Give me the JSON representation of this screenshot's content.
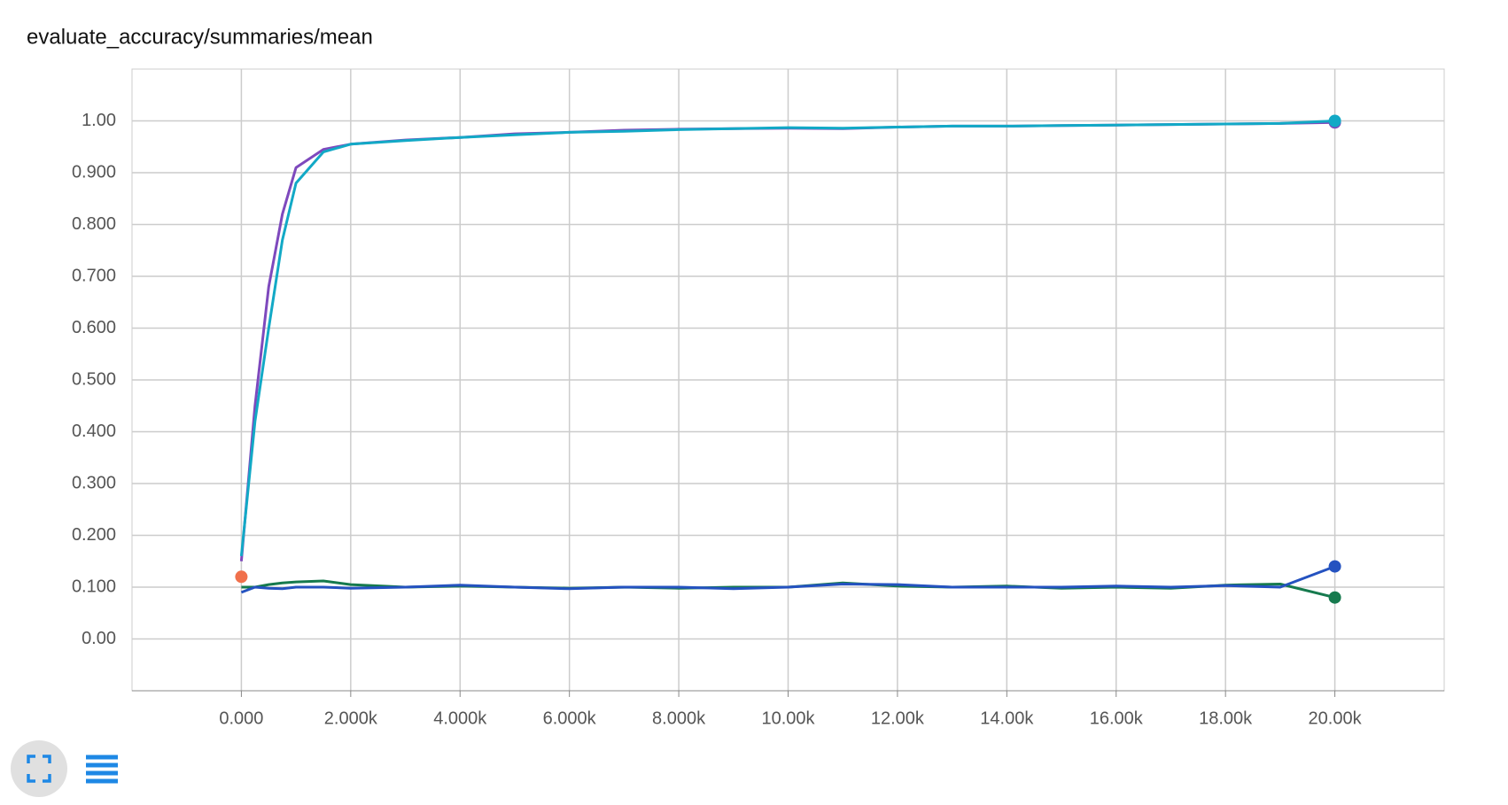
{
  "chart_data": {
    "type": "line",
    "title": "evaluate_accuracy/summaries/mean",
    "x": [
      0,
      250,
      500,
      750,
      1000,
      1500,
      2000,
      3000,
      4000,
      5000,
      6000,
      7000,
      8000,
      9000,
      10000,
      11000,
      12000,
      13000,
      14000,
      15000,
      16000,
      17000,
      18000,
      19000,
      20000
    ],
    "series": [
      {
        "color": "#7e49bd",
        "values": [
          0.15,
          0.45,
          0.68,
          0.82,
          0.91,
          0.945,
          0.955,
          0.963,
          0.968,
          0.975,
          0.978,
          0.982,
          0.984,
          0.985,
          0.986,
          0.985,
          0.988,
          0.99,
          0.99,
          0.991,
          0.992,
          0.993,
          0.994,
          0.995,
          0.997
        ]
      },
      {
        "color": "#12a9c6",
        "values": [
          0.16,
          0.42,
          0.6,
          0.77,
          0.88,
          0.94,
          0.955,
          0.962,
          0.968,
          0.973,
          0.978,
          0.98,
          0.983,
          0.985,
          0.987,
          0.986,
          0.988,
          0.99,
          0.99,
          0.991,
          0.992,
          0.993,
          0.994,
          0.995,
          1.0
        ]
      },
      {
        "color": "#167a4e",
        "values": [
          0.1,
          0.1,
          0.105,
          0.108,
          0.11,
          0.112,
          0.105,
          0.1,
          0.102,
          0.1,
          0.098,
          0.1,
          0.098,
          0.1,
          0.1,
          0.108,
          0.102,
          0.1,
          0.102,
          0.098,
          0.1,
          0.098,
          0.104,
          0.106,
          0.08
        ]
      },
      {
        "color": "#2452c0",
        "values": [
          0.09,
          0.1,
          0.098,
          0.097,
          0.1,
          0.1,
          0.098,
          0.1,
          0.104,
          0.1,
          0.097,
          0.1,
          0.1,
          0.097,
          0.1,
          0.106,
          0.105,
          0.1,
          0.1,
          0.1,
          0.102,
          0.1,
          0.103,
          0.1,
          0.14
        ]
      },
      {
        "color": "#f0704c",
        "values": [
          0.12,
          null,
          null,
          null,
          null,
          null,
          null,
          null,
          null,
          null,
          null,
          null,
          null,
          null,
          null,
          null,
          null,
          null,
          null,
          null,
          null,
          null,
          null,
          null,
          null
        ]
      }
    ],
    "xlim": [
      -2000,
      22000
    ],
    "xticks": [
      {
        "value": 0,
        "label": "0.000"
      },
      {
        "value": 2000,
        "label": "2.000k"
      },
      {
        "value": 4000,
        "label": "4.000k"
      },
      {
        "value": 6000,
        "label": "6.000k"
      },
      {
        "value": 8000,
        "label": "8.000k"
      },
      {
        "value": 10000,
        "label": "10.00k"
      },
      {
        "value": 12000,
        "label": "12.00k"
      },
      {
        "value": 14000,
        "label": "14.00k"
      },
      {
        "value": 16000,
        "label": "16.00k"
      },
      {
        "value": 18000,
        "label": "18.00k"
      },
      {
        "value": 20000,
        "label": "20.00k"
      }
    ],
    "ylim": [
      -0.1,
      1.1
    ],
    "yticks": [
      {
        "value": 0,
        "label": "0.00"
      },
      {
        "value": 0.1,
        "label": "0.100"
      },
      {
        "value": 0.2,
        "label": "0.200"
      },
      {
        "value": 0.3,
        "label": "0.300"
      },
      {
        "value": 0.4,
        "label": "0.400"
      },
      {
        "value": 0.5,
        "label": "0.500"
      },
      {
        "value": 0.6,
        "label": "0.600"
      },
      {
        "value": 0.7,
        "label": "0.700"
      },
      {
        "value": 0.8,
        "label": "0.800"
      },
      {
        "value": 0.9,
        "label": "0.900"
      },
      {
        "value": 1,
        "label": "1.00"
      }
    ],
    "grid": true
  }
}
